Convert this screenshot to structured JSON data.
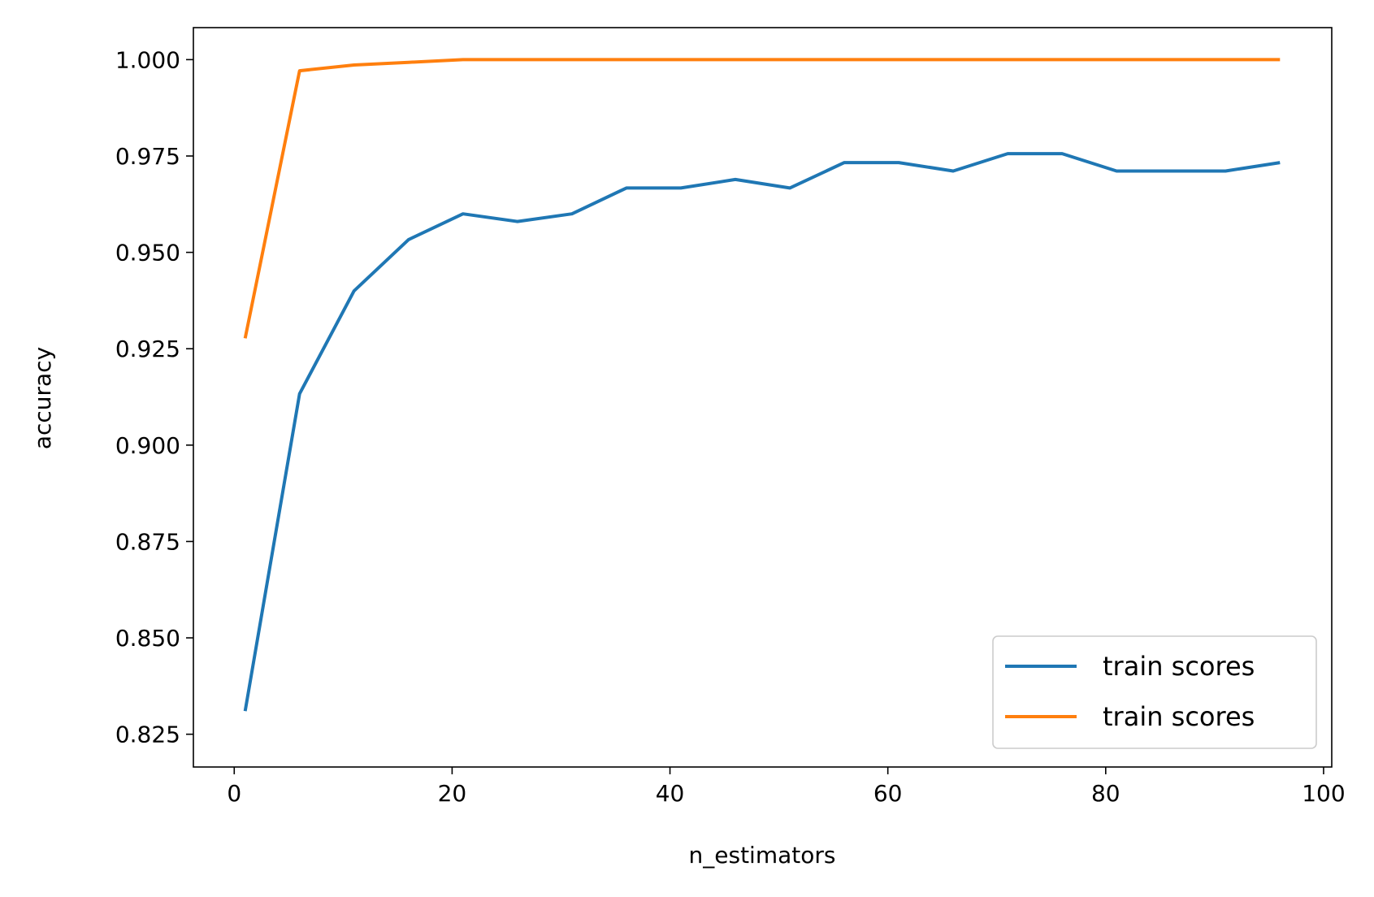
{
  "chart_data": {
    "type": "line",
    "title": "",
    "xlabel": "n_estimators",
    "ylabel": "accuracy",
    "xlim": [
      -3.75,
      100.75
    ],
    "ylim": [
      0.8165,
      1.0083
    ],
    "xticks": [
      0,
      20,
      40,
      60,
      80,
      100
    ],
    "xtick_labels": [
      "0",
      "20",
      "40",
      "60",
      "80",
      "100"
    ],
    "yticks": [
      0.825,
      0.85,
      0.875,
      0.9,
      0.925,
      0.95,
      0.975,
      1.0
    ],
    "ytick_labels": [
      "0.825",
      "0.850",
      "0.875",
      "0.900",
      "0.925",
      "0.950",
      "0.975",
      "1.000"
    ],
    "grid": false,
    "legend_position": "lower-right",
    "x": [
      1,
      6,
      11,
      16,
      21,
      26,
      31,
      36,
      41,
      46,
      51,
      56,
      61,
      66,
      71,
      76,
      81,
      86,
      91,
      96
    ],
    "series": [
      {
        "name": "train scores",
        "color": "#1f77b4",
        "values": [
          0.831,
          0.9133,
          0.94,
          0.9533,
          0.96,
          0.958,
          0.96,
          0.9667,
          0.9667,
          0.9689,
          0.9667,
          0.9733,
          0.9733,
          0.9711,
          0.9756,
          0.9756,
          0.9711,
          0.9711,
          0.9711,
          0.9733
        ]
      },
      {
        "name": "train scores",
        "color": "#ff7f0e",
        "values": [
          0.9277,
          0.9971,
          0.9986,
          0.9993,
          1.0,
          1.0,
          1.0,
          1.0,
          1.0,
          1.0,
          1.0,
          1.0,
          1.0,
          1.0,
          1.0,
          1.0,
          1.0,
          1.0,
          1.0,
          1.0
        ]
      }
    ]
  }
}
